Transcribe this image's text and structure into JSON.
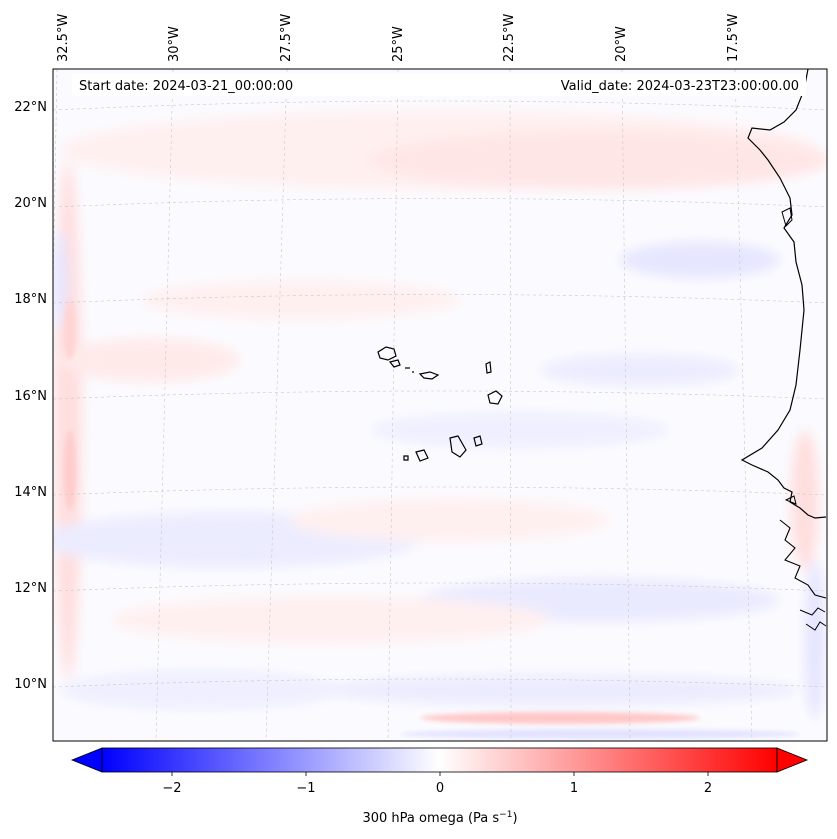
{
  "map": {
    "start_date": "Start date: 2024-03-21_00:00:00",
    "valid_date": "Valid_date: 2024-03-23T23:00:00.00",
    "lon_labels": [
      "32.5°W",
      "30°W",
      "27.5°W",
      "25°W",
      "22.5°W",
      "20°W",
      "17.5°W"
    ],
    "lat_labels": [
      "22°N",
      "20°N",
      "18°N",
      "16°N",
      "14°N",
      "12°N",
      "10°N"
    ],
    "colorbar": {
      "title": "300 hPa omega (Pa s",
      "title_sup": "−1",
      "title_end": ")",
      "ticks": [
        "−2",
        "−1",
        "0",
        "1",
        "2"
      ],
      "negative_color": "#0000ff",
      "positive_color": "#ff0000"
    }
  }
}
